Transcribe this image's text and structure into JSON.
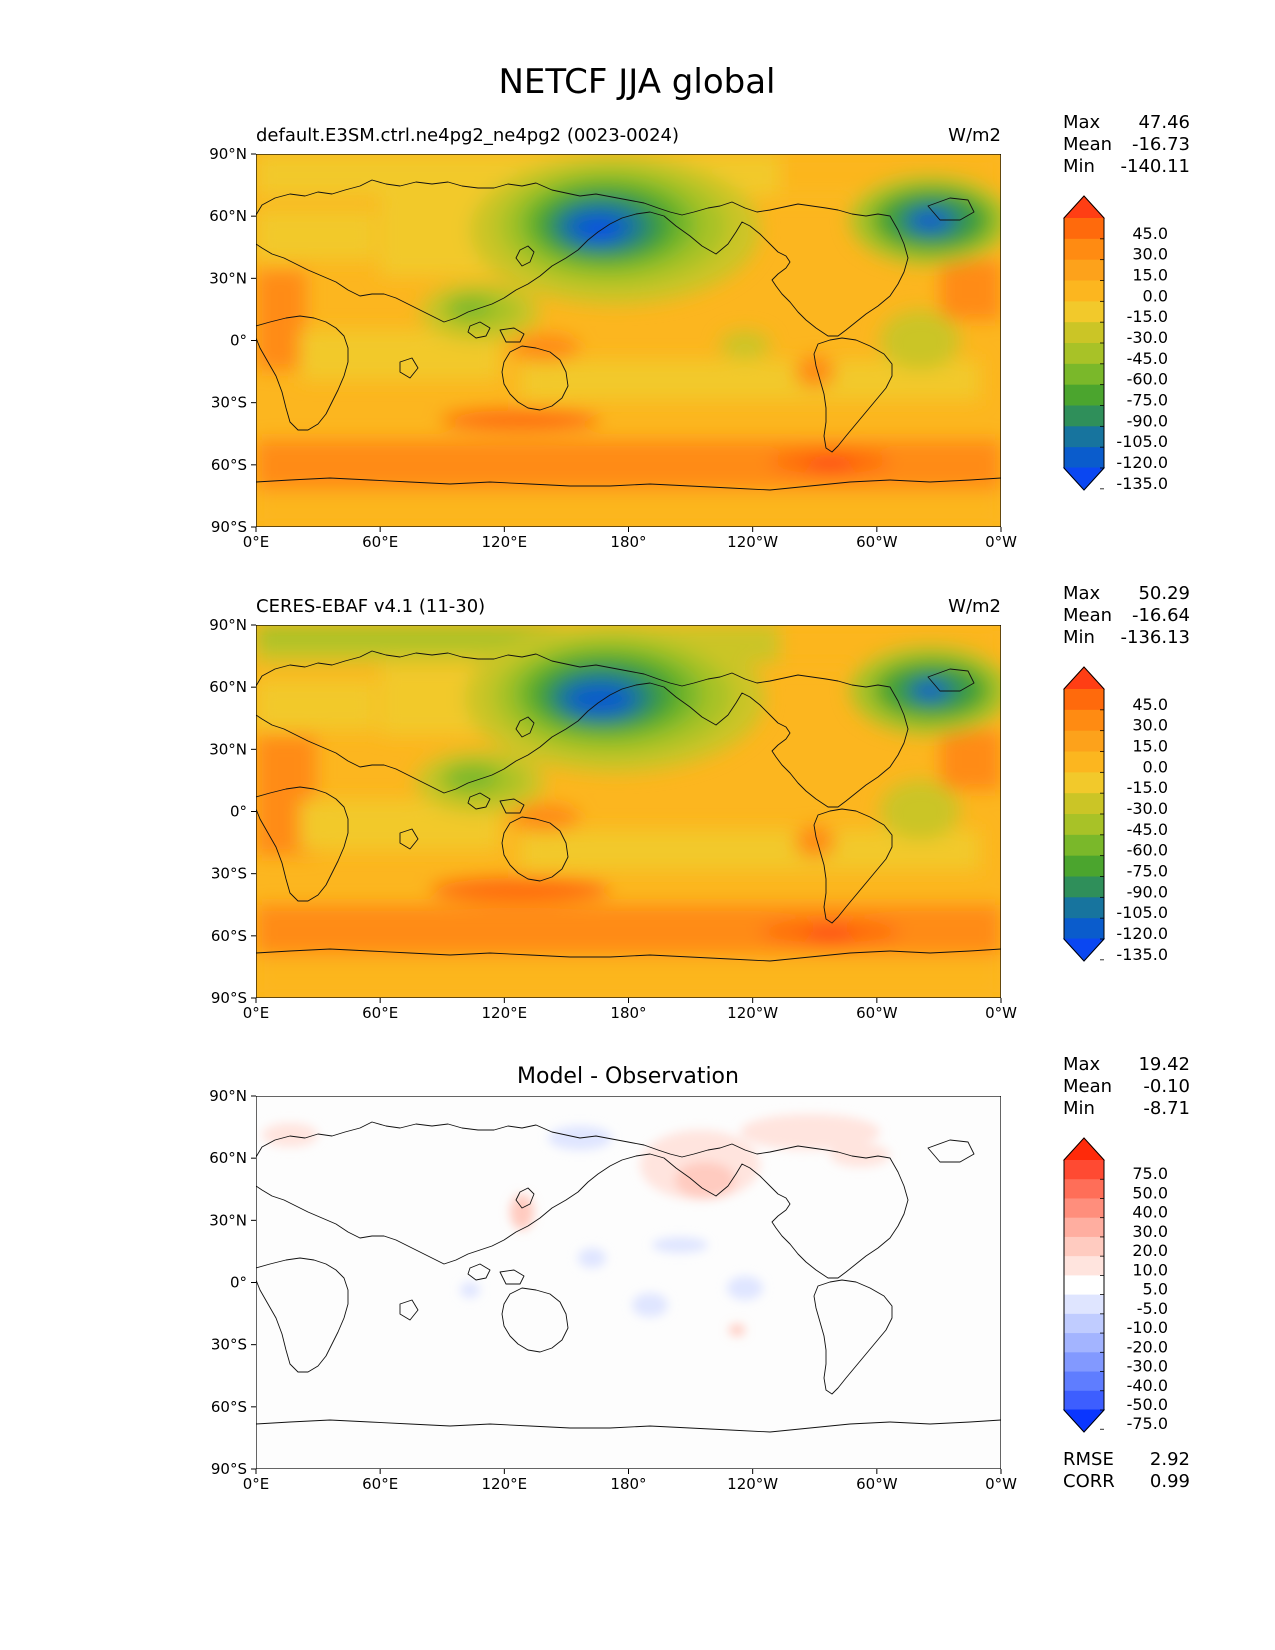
{
  "figure_title": "NETCF JJA global",
  "x_ticks": [
    "0°E",
    "60°E",
    "120°E",
    "180°",
    "120°W",
    "60°W",
    "0°W"
  ],
  "y_ticks": [
    "90°N",
    "60°N",
    "30°N",
    "0°",
    "30°S",
    "60°S",
    "90°S"
  ],
  "panels": [
    {
      "id": "model",
      "title_left": "default.E3SM.ctrl.ne4pg2_ne4pg2 (0023-0024)",
      "title_center": "",
      "units": "W/m2",
      "stats": [
        {
          "label": "Max",
          "value": "47.46"
        },
        {
          "label": "Mean",
          "value": "-16.73"
        },
        {
          "label": "Min",
          "value": "-140.11"
        }
      ],
      "colorbar_levels": [
        "45.0",
        "30.0",
        "15.0",
        "0.0",
        "-15.0",
        "-30.0",
        "-45.0",
        "-60.0",
        "-75.0",
        "-90.0",
        "-105.0",
        "-120.0",
        "-135.0"
      ],
      "colorbar_colors": [
        "#ff3e14",
        "#ff6a0c",
        "#ff8b12",
        "#fda21b",
        "#fcb61f",
        "#f2c92b",
        "#cbc526",
        "#a8c227",
        "#7ab82a",
        "#4ba52e",
        "#2f8f5a",
        "#17749e",
        "#0a5ccc",
        "#0a47f2"
      ]
    },
    {
      "id": "obs",
      "title_left": "CERES-EBAF v4.1 (11-30)",
      "title_center": "",
      "units": "W/m2",
      "stats": [
        {
          "label": "Max",
          "value": "50.29"
        },
        {
          "label": "Mean",
          "value": "-16.64"
        },
        {
          "label": "Min",
          "value": "-136.13"
        }
      ],
      "colorbar_levels": [
        "45.0",
        "30.0",
        "15.0",
        "0.0",
        "-15.0",
        "-30.0",
        "-45.0",
        "-60.0",
        "-75.0",
        "-90.0",
        "-105.0",
        "-120.0",
        "-135.0"
      ],
      "colorbar_colors": [
        "#ff3e14",
        "#ff6a0c",
        "#ff8b12",
        "#fda21b",
        "#fcb61f",
        "#f2c92b",
        "#cbc526",
        "#a8c227",
        "#7ab82a",
        "#4ba52e",
        "#2f8f5a",
        "#17749e",
        "#0a5ccc",
        "#0a47f2"
      ]
    },
    {
      "id": "diff",
      "title_left": "",
      "title_center": "Model - Observation",
      "units": "",
      "stats": [
        {
          "label": "Max",
          "value": "19.42"
        },
        {
          "label": "Mean",
          "value": "-0.10"
        },
        {
          "label": "Min",
          "value": "-8.71"
        }
      ],
      "metrics": [
        {
          "label": "RMSE",
          "value": "2.92"
        },
        {
          "label": "CORR",
          "value": "0.99"
        }
      ],
      "colorbar_levels": [
        "75.0",
        "50.0",
        "40.0",
        "30.0",
        "20.0",
        "10.0",
        "5.0",
        "-5.0",
        "-10.0",
        "-20.0",
        "-30.0",
        "-40.0",
        "-50.0",
        "-75.0"
      ],
      "colorbar_colors": [
        "#ff2a0a",
        "#ff4a32",
        "#ff6e58",
        "#ff8e7c",
        "#ffaea0",
        "#ffcbc0",
        "#ffe4de",
        "#ffffff",
        "#dfe5ff",
        "#c0ccff",
        "#a3b4ff",
        "#8299ff",
        "#5f7dff",
        "#3d5eff",
        "#0a36ff"
      ]
    }
  ]
}
